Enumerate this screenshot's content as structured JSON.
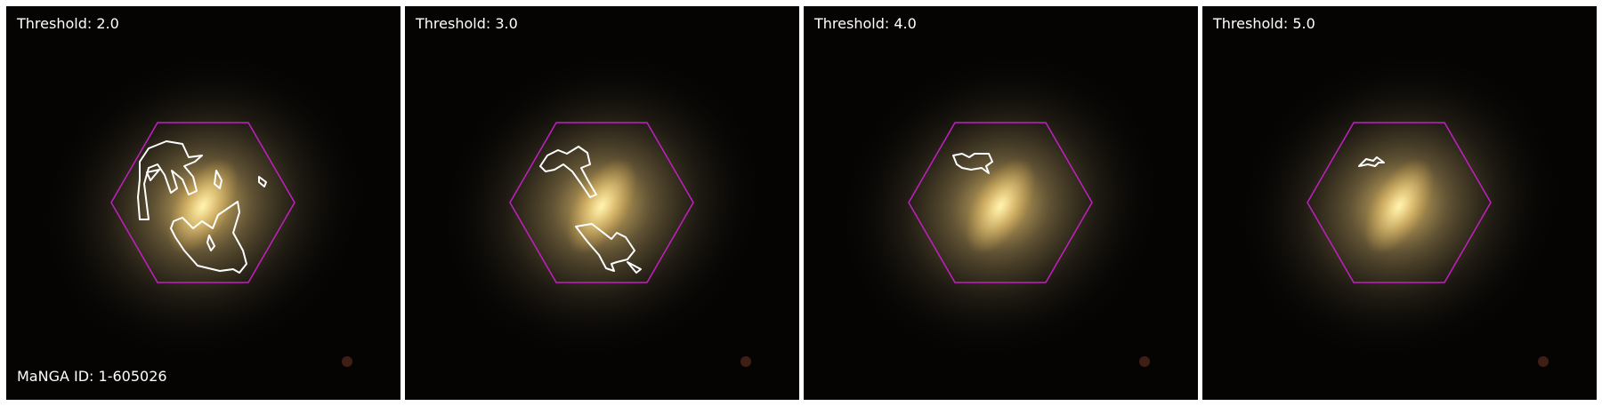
{
  "figure": {
    "manga_id_label": "MaNGA ID: 1-605026",
    "panels": [
      {
        "threshold_label": "Threshold: 2.0"
      },
      {
        "threshold_label": "Threshold: 3.0"
      },
      {
        "threshold_label": "Threshold: 4.0"
      },
      {
        "threshold_label": "Threshold: 5.0"
      }
    ]
  },
  "colors": {
    "background": "#050403",
    "galaxy_core": "#f2d27a",
    "galaxy_halo": "#8a7a4a",
    "hexagon": "#c21fc2",
    "contour": "#ffffff"
  }
}
